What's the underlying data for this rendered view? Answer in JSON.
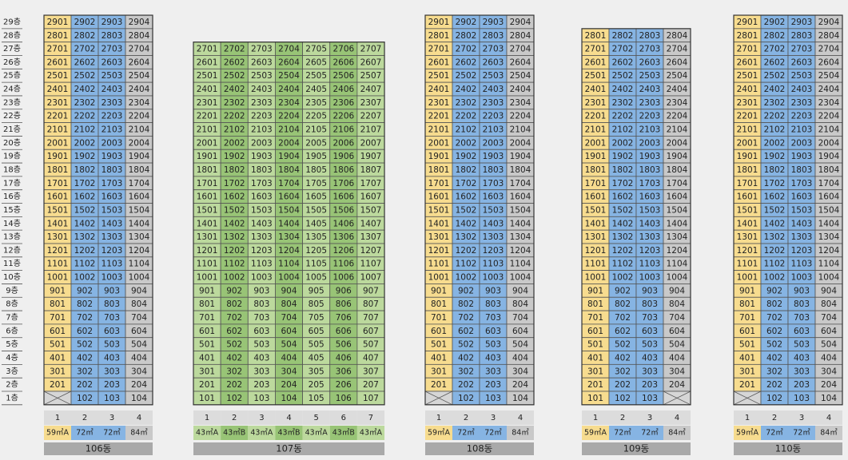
{
  "floor_labels": [
    "29층",
    "28층",
    "27층",
    "26층",
    "25층",
    "24층",
    "23층",
    "22층",
    "21층",
    "20층",
    "19층",
    "18층",
    "17층",
    "16층",
    "15층",
    "14층",
    "13층",
    "12층",
    "11층",
    "10층",
    "9층",
    "8층",
    "7층",
    "6층",
    "5층",
    "4층",
    "3층",
    "2층",
    "1층"
  ],
  "buildings": [
    {
      "name": "106동",
      "lines": [
        "1",
        "2",
        "3",
        "4"
      ],
      "types": [
        "59㎡A",
        "72㎡",
        "72㎡",
        "84㎡"
      ],
      "colors": [
        "#f7dc8f",
        "#86b4e3",
        "#86b4e3",
        "#c9c9c9"
      ],
      "rows": [
        [
          "2901",
          "2902",
          "2903",
          "2904"
        ],
        [
          "2801",
          "2802",
          "2803",
          "2804"
        ],
        [
          "2701",
          "2702",
          "2703",
          "2704"
        ],
        [
          "2601",
          "2602",
          "2603",
          "2604"
        ],
        [
          "2501",
          "2502",
          "2503",
          "2504"
        ],
        [
          "2401",
          "2402",
          "2403",
          "2404"
        ],
        [
          "2301",
          "2302",
          "2303",
          "2304"
        ],
        [
          "2201",
          "2202",
          "2203",
          "2204"
        ],
        [
          "2101",
          "2102",
          "2103",
          "2104"
        ],
        [
          "2001",
          "2002",
          "2003",
          "2004"
        ],
        [
          "1901",
          "1902",
          "1903",
          "1904"
        ],
        [
          "1801",
          "1802",
          "1803",
          "1804"
        ],
        [
          "1701",
          "1702",
          "1703",
          "1704"
        ],
        [
          "1601",
          "1602",
          "1603",
          "1604"
        ],
        [
          "1501",
          "1502",
          "1503",
          "1504"
        ],
        [
          "1401",
          "1402",
          "1403",
          "1404"
        ],
        [
          "1301",
          "1302",
          "1303",
          "1304"
        ],
        [
          "1201",
          "1202",
          "1203",
          "1204"
        ],
        [
          "1101",
          "1102",
          "1103",
          "1104"
        ],
        [
          "1001",
          "1002",
          "1003",
          "1004"
        ],
        [
          "901",
          "902",
          "903",
          "904"
        ],
        [
          "801",
          "802",
          "803",
          "804"
        ],
        [
          "701",
          "702",
          "703",
          "704"
        ],
        [
          "601",
          "602",
          "603",
          "604"
        ],
        [
          "501",
          "502",
          "503",
          "504"
        ],
        [
          "401",
          "402",
          "403",
          "404"
        ],
        [
          "301",
          "302",
          "303",
          "304"
        ],
        [
          "201",
          "202",
          "203",
          "204"
        ],
        [
          null,
          "102",
          "103",
          "104"
        ]
      ]
    },
    {
      "name": "107동",
      "lines": [
        "1",
        "2",
        "3",
        "4",
        "5",
        "6",
        "7"
      ],
      "types": [
        "43㎡A",
        "43㎡B",
        "43㎡A",
        "43㎡B",
        "43㎡A",
        "43㎡B",
        "43㎡A"
      ],
      "colors": [
        "#bcd99d",
        "#98c476",
        "#bcd99d",
        "#98c476",
        "#bcd99d",
        "#98c476",
        "#bcd99d"
      ],
      "rows": [
        [
          "2701",
          "2702",
          "2703",
          "2704",
          "2705",
          "2706",
          "2707"
        ],
        [
          "2601",
          "2602",
          "2603",
          "2604",
          "2605",
          "2606",
          "2607"
        ],
        [
          "2501",
          "2502",
          "2503",
          "2504",
          "2505",
          "2506",
          "2507"
        ],
        [
          "2401",
          "2402",
          "2403",
          "2404",
          "2405",
          "2406",
          "2407"
        ],
        [
          "2301",
          "2302",
          "2303",
          "2304",
          "2305",
          "2306",
          "2307"
        ],
        [
          "2201",
          "2202",
          "2203",
          "2204",
          "2205",
          "2206",
          "2207"
        ],
        [
          "2101",
          "2102",
          "2103",
          "2104",
          "2105",
          "2106",
          "2107"
        ],
        [
          "2001",
          "2002",
          "2003",
          "2004",
          "2005",
          "2006",
          "2007"
        ],
        [
          "1901",
          "1902",
          "1903",
          "1904",
          "1905",
          "1906",
          "1907"
        ],
        [
          "1801",
          "1802",
          "1803",
          "1804",
          "1805",
          "1806",
          "1807"
        ],
        [
          "1701",
          "1702",
          "1703",
          "1704",
          "1705",
          "1706",
          "1707"
        ],
        [
          "1601",
          "1602",
          "1603",
          "1604",
          "1605",
          "1606",
          "1607"
        ],
        [
          "1501",
          "1502",
          "1503",
          "1504",
          "1505",
          "1506",
          "1507"
        ],
        [
          "1401",
          "1402",
          "1403",
          "1404",
          "1405",
          "1406",
          "1407"
        ],
        [
          "1301",
          "1302",
          "1303",
          "1304",
          "1305",
          "1306",
          "1307"
        ],
        [
          "1201",
          "1202",
          "1203",
          "1204",
          "1205",
          "1206",
          "1207"
        ],
        [
          "1101",
          "1102",
          "1103",
          "1104",
          "1105",
          "1106",
          "1107"
        ],
        [
          "1001",
          "1002",
          "1003",
          "1004",
          "1005",
          "1006",
          "1007"
        ],
        [
          "901",
          "902",
          "903",
          "904",
          "905",
          "906",
          "907"
        ],
        [
          "801",
          "802",
          "803",
          "804",
          "805",
          "806",
          "807"
        ],
        [
          "701",
          "702",
          "703",
          "704",
          "705",
          "706",
          "707"
        ],
        [
          "601",
          "602",
          "603",
          "604",
          "605",
          "606",
          "607"
        ],
        [
          "501",
          "502",
          "503",
          "504",
          "505",
          "506",
          "507"
        ],
        [
          "401",
          "402",
          "403",
          "404",
          "405",
          "406",
          "407"
        ],
        [
          "301",
          "302",
          "303",
          "304",
          "305",
          "306",
          "307"
        ],
        [
          "201",
          "202",
          "203",
          "204",
          "205",
          "206",
          "207"
        ],
        [
          "101",
          "102",
          "103",
          "104",
          "105",
          "106",
          "107"
        ]
      ]
    },
    {
      "name": "108동",
      "lines": [
        "1",
        "2",
        "3",
        "4"
      ],
      "types": [
        "59㎡A",
        "72㎡",
        "72㎡",
        "84㎡"
      ],
      "colors": [
        "#f7dc8f",
        "#86b4e3",
        "#86b4e3",
        "#c9c9c9"
      ],
      "rows": [
        [
          "2901",
          "2902",
          "2903",
          "2904"
        ],
        [
          "2801",
          "2802",
          "2803",
          "2804"
        ],
        [
          "2701",
          "2702",
          "2703",
          "2704"
        ],
        [
          "2601",
          "2602",
          "2603",
          "2604"
        ],
        [
          "2501",
          "2502",
          "2503",
          "2504"
        ],
        [
          "2401",
          "2402",
          "2403",
          "2404"
        ],
        [
          "2301",
          "2302",
          "2303",
          "2304"
        ],
        [
          "2201",
          "2202",
          "2203",
          "2204"
        ],
        [
          "2101",
          "2102",
          "2103",
          "2104"
        ],
        [
          "2001",
          "2002",
          "2003",
          "2004"
        ],
        [
          "1901",
          "1902",
          "1903",
          "1904"
        ],
        [
          "1801",
          "1802",
          "1803",
          "1804"
        ],
        [
          "1701",
          "1702",
          "1703",
          "1704"
        ],
        [
          "1601",
          "1602",
          "1603",
          "1604"
        ],
        [
          "1501",
          "1502",
          "1503",
          "1504"
        ],
        [
          "1401",
          "1402",
          "1403",
          "1404"
        ],
        [
          "1301",
          "1302",
          "1303",
          "1304"
        ],
        [
          "1201",
          "1202",
          "1203",
          "1204"
        ],
        [
          "1101",
          "1102",
          "1103",
          "1104"
        ],
        [
          "1001",
          "1002",
          "1003",
          "1004"
        ],
        [
          "901",
          "902",
          "903",
          "904"
        ],
        [
          "801",
          "802",
          "803",
          "804"
        ],
        [
          "701",
          "702",
          "703",
          "704"
        ],
        [
          "601",
          "602",
          "603",
          "604"
        ],
        [
          "501",
          "502",
          "503",
          "504"
        ],
        [
          "401",
          "402",
          "403",
          "404"
        ],
        [
          "301",
          "302",
          "303",
          "304"
        ],
        [
          "201",
          "202",
          "203",
          "204"
        ],
        [
          null,
          "102",
          "103",
          "104"
        ]
      ]
    },
    {
      "name": "109동",
      "lines": [
        "1",
        "2",
        "3",
        "4"
      ],
      "types": [
        "59㎡A",
        "72㎡",
        "72㎡",
        "84㎡"
      ],
      "colors": [
        "#f7dc8f",
        "#86b4e3",
        "#86b4e3",
        "#c9c9c9"
      ],
      "rows": [
        [
          "2801",
          "2802",
          "2803",
          "2804"
        ],
        [
          "2701",
          "2702",
          "2703",
          "2704"
        ],
        [
          "2601",
          "2602",
          "2603",
          "2604"
        ],
        [
          "2501",
          "2502",
          "2503",
          "2504"
        ],
        [
          "2401",
          "2402",
          "2403",
          "2404"
        ],
        [
          "2301",
          "2302",
          "2303",
          "2304"
        ],
        [
          "2201",
          "2202",
          "2203",
          "2204"
        ],
        [
          "2101",
          "2102",
          "2103",
          "2104"
        ],
        [
          "2001",
          "2002",
          "2003",
          "2004"
        ],
        [
          "1901",
          "1902",
          "1903",
          "1904"
        ],
        [
          "1801",
          "1802",
          "1803",
          "1804"
        ],
        [
          "1701",
          "1702",
          "1703",
          "1704"
        ],
        [
          "1601",
          "1602",
          "1603",
          "1604"
        ],
        [
          "1501",
          "1502",
          "1503",
          "1504"
        ],
        [
          "1401",
          "1402",
          "1403",
          "1404"
        ],
        [
          "1301",
          "1302",
          "1303",
          "1304"
        ],
        [
          "1201",
          "1202",
          "1203",
          "1204"
        ],
        [
          "1101",
          "1102",
          "1103",
          "1104"
        ],
        [
          "1001",
          "1002",
          "1003",
          "1004"
        ],
        [
          "901",
          "902",
          "903",
          "904"
        ],
        [
          "801",
          "802",
          "803",
          "804"
        ],
        [
          "701",
          "702",
          "703",
          "704"
        ],
        [
          "601",
          "602",
          "603",
          "604"
        ],
        [
          "501",
          "502",
          "503",
          "504"
        ],
        [
          "401",
          "402",
          "403",
          "404"
        ],
        [
          "301",
          "302",
          "303",
          "304"
        ],
        [
          "201",
          "202",
          "203",
          "204"
        ],
        [
          "101",
          "102",
          "103",
          null
        ]
      ]
    },
    {
      "name": "110동",
      "lines": [
        "1",
        "2",
        "3",
        "4"
      ],
      "types": [
        "59㎡A",
        "72㎡",
        "72㎡",
        "84㎡"
      ],
      "colors": [
        "#f7dc8f",
        "#86b4e3",
        "#86b4e3",
        "#c9c9c9"
      ],
      "rows": [
        [
          "2901",
          "2902",
          "2903",
          "2904"
        ],
        [
          "2801",
          "2802",
          "2803",
          "2804"
        ],
        [
          "2701",
          "2702",
          "2703",
          "2704"
        ],
        [
          "2601",
          "2602",
          "2603",
          "2604"
        ],
        [
          "2501",
          "2502",
          "2503",
          "2504"
        ],
        [
          "2401",
          "2402",
          "2403",
          "2404"
        ],
        [
          "2301",
          "2302",
          "2303",
          "2304"
        ],
        [
          "2201",
          "2202",
          "2203",
          "2204"
        ],
        [
          "2101",
          "2102",
          "2103",
          "2104"
        ],
        [
          "2001",
          "2002",
          "2003",
          "2004"
        ],
        [
          "1901",
          "1902",
          "1903",
          "1904"
        ],
        [
          "1801",
          "1802",
          "1803",
          "1804"
        ],
        [
          "1701",
          "1702",
          "1703",
          "1704"
        ],
        [
          "1601",
          "1602",
          "1603",
          "1604"
        ],
        [
          "1501",
          "1502",
          "1503",
          "1504"
        ],
        [
          "1401",
          "1402",
          "1403",
          "1404"
        ],
        [
          "1301",
          "1302",
          "1303",
          "1304"
        ],
        [
          "1201",
          "1202",
          "1203",
          "1204"
        ],
        [
          "1101",
          "1102",
          "1103",
          "1104"
        ],
        [
          "1001",
          "1002",
          "1003",
          "1004"
        ],
        [
          "901",
          "902",
          "903",
          "904"
        ],
        [
          "801",
          "802",
          "803",
          "804"
        ],
        [
          "701",
          "702",
          "703",
          "704"
        ],
        [
          "601",
          "602",
          "603",
          "604"
        ],
        [
          "501",
          "502",
          "503",
          "504"
        ],
        [
          "401",
          "402",
          "403",
          "404"
        ],
        [
          "301",
          "302",
          "303",
          "304"
        ],
        [
          "201",
          "202",
          "203",
          "204"
        ],
        [
          null,
          "102",
          "103",
          "104"
        ]
      ]
    }
  ]
}
